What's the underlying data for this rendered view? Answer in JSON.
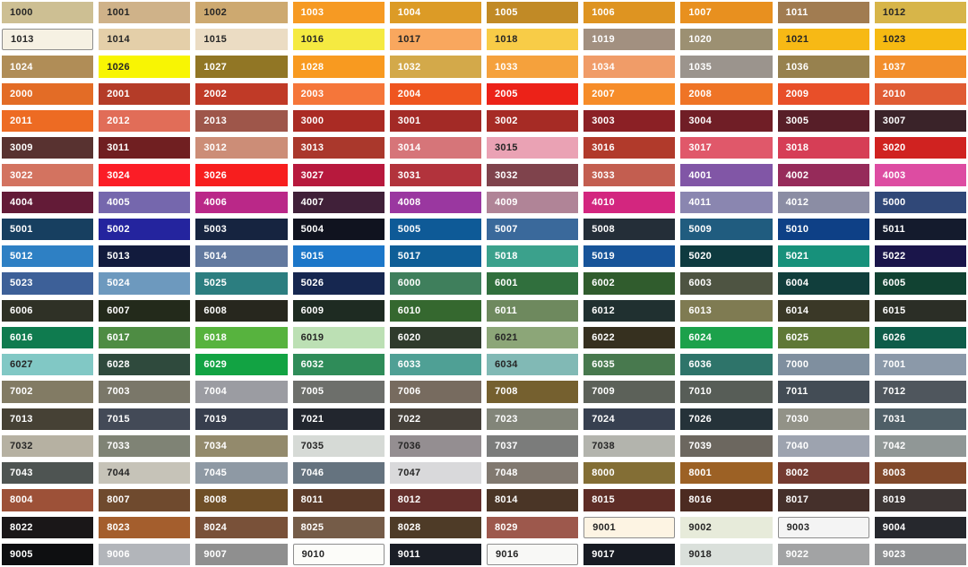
{
  "page": {
    "background": "#ffffff"
  },
  "text_colors": {
    "dark": "#262626",
    "light": "#FFFFFF"
  },
  "swatch_border_color": "#8e8e8e",
  "chart_data": {
    "type": "table",
    "title": "RAL colour swatch grid",
    "rows": 21,
    "columns": 10,
    "legend_position": "none",
    "grid": false,
    "swatches": [
      {
        "code": "1000",
        "hex": "#CDBF93",
        "fg": "dark"
      },
      {
        "code": "1001",
        "hex": "#CFB289",
        "fg": "dark"
      },
      {
        "code": "1002",
        "hex": "#CDA970",
        "fg": "dark"
      },
      {
        "code": "1003",
        "hex": "#F69A23",
        "fg": "light"
      },
      {
        "code": "1004",
        "hex": "#DC9B26",
        "fg": "light"
      },
      {
        "code": "1005",
        "hex": "#C18A26",
        "fg": "light"
      },
      {
        "code": "1006",
        "hex": "#DE9421",
        "fg": "light"
      },
      {
        "code": "1007",
        "hex": "#E8901F",
        "fg": "light"
      },
      {
        "code": "1011",
        "hex": "#A17C51",
        "fg": "light"
      },
      {
        "code": "1012",
        "hex": "#D7B549",
        "fg": "dark"
      },
      {
        "code": "1013",
        "hex": "#F6F1E3",
        "fg": "dark",
        "border": true
      },
      {
        "code": "1014",
        "hex": "#E4CFA9",
        "fg": "dark"
      },
      {
        "code": "1015",
        "hex": "#EBDCC3",
        "fg": "dark"
      },
      {
        "code": "1016",
        "hex": "#F5EA41",
        "fg": "dark"
      },
      {
        "code": "1017",
        "hex": "#F9A75E",
        "fg": "dark"
      },
      {
        "code": "1018",
        "hex": "#F8CC47",
        "fg": "dark"
      },
      {
        "code": "1019",
        "hex": "#A29080",
        "fg": "light"
      },
      {
        "code": "1020",
        "hex": "#9C9072",
        "fg": "light"
      },
      {
        "code": "1021",
        "hex": "#F7B915",
        "fg": "dark"
      },
      {
        "code": "1023",
        "hex": "#F6BA12",
        "fg": "dark"
      },
      {
        "code": "1024",
        "hex": "#B08D57",
        "fg": "light"
      },
      {
        "code": "1026",
        "hex": "#F8F503",
        "fg": "dark"
      },
      {
        "code": "1027",
        "hex": "#917625",
        "fg": "light"
      },
      {
        "code": "1028",
        "hex": "#F89A20",
        "fg": "light"
      },
      {
        "code": "1032",
        "hex": "#D3A94A",
        "fg": "light"
      },
      {
        "code": "1033",
        "hex": "#F5A13C",
        "fg": "light"
      },
      {
        "code": "1034",
        "hex": "#F09C68",
        "fg": "light"
      },
      {
        "code": "1035",
        "hex": "#9B948D",
        "fg": "light"
      },
      {
        "code": "1036",
        "hex": "#97814E",
        "fg": "light"
      },
      {
        "code": "1037",
        "hex": "#F28E2B",
        "fg": "light"
      },
      {
        "code": "2000",
        "hex": "#E36C26",
        "fg": "light"
      },
      {
        "code": "2001",
        "hex": "#B43C28",
        "fg": "light"
      },
      {
        "code": "2002",
        "hex": "#C03A27",
        "fg": "light"
      },
      {
        "code": "2003",
        "hex": "#F5763A",
        "fg": "light"
      },
      {
        "code": "2004",
        "hex": "#EF551F",
        "fg": "light"
      },
      {
        "code": "2005",
        "hex": "#EC2218",
        "fg": "light"
      },
      {
        "code": "2007",
        "hex": "#F68C29",
        "fg": "light"
      },
      {
        "code": "2008",
        "hex": "#EF7426",
        "fg": "light"
      },
      {
        "code": "2009",
        "hex": "#E84F29",
        "fg": "light"
      },
      {
        "code": "2010",
        "hex": "#E05C34",
        "fg": "light"
      },
      {
        "code": "2011",
        "hex": "#ED6B23",
        "fg": "light"
      },
      {
        "code": "2012",
        "hex": "#E16D58",
        "fg": "light"
      },
      {
        "code": "2013",
        "hex": "#9E564A",
        "fg": "light"
      },
      {
        "code": "3000",
        "hex": "#AA2B24",
        "fg": "light"
      },
      {
        "code": "3001",
        "hex": "#A32A26",
        "fg": "light"
      },
      {
        "code": "3002",
        "hex": "#A62B25",
        "fg": "light"
      },
      {
        "code": "3003",
        "hex": "#8B2025",
        "fg": "light"
      },
      {
        "code": "3004",
        "hex": "#701E26",
        "fg": "light"
      },
      {
        "code": "3005",
        "hex": "#571E28",
        "fg": "light"
      },
      {
        "code": "3007",
        "hex": "#3A2329",
        "fg": "light"
      },
      {
        "code": "3009",
        "hex": "#583230",
        "fg": "light"
      },
      {
        "code": "3011",
        "hex": "#701F21",
        "fg": "light"
      },
      {
        "code": "3012",
        "hex": "#CC8D77",
        "fg": "light"
      },
      {
        "code": "3013",
        "hex": "#AA382C",
        "fg": "light"
      },
      {
        "code": "3014",
        "hex": "#D67579",
        "fg": "light"
      },
      {
        "code": "3015",
        "hex": "#EAA2B4",
        "fg": "dark"
      },
      {
        "code": "3016",
        "hex": "#B13A2B",
        "fg": "light"
      },
      {
        "code": "3017",
        "hex": "#E0586A",
        "fg": "light"
      },
      {
        "code": "3018",
        "hex": "#D63E56",
        "fg": "light"
      },
      {
        "code": "3020",
        "hex": "#D02220",
        "fg": "light"
      },
      {
        "code": "3022",
        "hex": "#D37360",
        "fg": "light"
      },
      {
        "code": "3024",
        "hex": "#FB1D26",
        "fg": "light"
      },
      {
        "code": "3026",
        "hex": "#F71E1E",
        "fg": "light"
      },
      {
        "code": "3027",
        "hex": "#B7193D",
        "fg": "light"
      },
      {
        "code": "3031",
        "hex": "#B2333C",
        "fg": "light"
      },
      {
        "code": "3032",
        "hex": "#7F434C",
        "fg": "light"
      },
      {
        "code": "3033",
        "hex": "#C35E50",
        "fg": "light"
      },
      {
        "code": "4001",
        "hex": "#8156A6",
        "fg": "light"
      },
      {
        "code": "4002",
        "hex": "#962B5A",
        "fg": "light"
      },
      {
        "code": "4003",
        "hex": "#DD4CA2",
        "fg": "light"
      },
      {
        "code": "4004",
        "hex": "#631B37",
        "fg": "light"
      },
      {
        "code": "4005",
        "hex": "#7567AD",
        "fg": "light"
      },
      {
        "code": "4006",
        "hex": "#BA2888",
        "fg": "light"
      },
      {
        "code": "4007",
        "hex": "#402039",
        "fg": "light"
      },
      {
        "code": "4008",
        "hex": "#9A37A0",
        "fg": "light"
      },
      {
        "code": "4009",
        "hex": "#B08497",
        "fg": "light"
      },
      {
        "code": "4010",
        "hex": "#D3267F",
        "fg": "light"
      },
      {
        "code": "4011",
        "hex": "#8A86B0",
        "fg": "light"
      },
      {
        "code": "4012",
        "hex": "#8B8DA4",
        "fg": "light"
      },
      {
        "code": "5000",
        "hex": "#304878",
        "fg": "light"
      },
      {
        "code": "5001",
        "hex": "#173F60",
        "fg": "light"
      },
      {
        "code": "5002",
        "hex": "#24249E",
        "fg": "light"
      },
      {
        "code": "5003",
        "hex": "#162440",
        "fg": "light"
      },
      {
        "code": "5004",
        "hex": "#10131F",
        "fg": "light"
      },
      {
        "code": "5005",
        "hex": "#0E5A97",
        "fg": "light"
      },
      {
        "code": "5007",
        "hex": "#3A699B",
        "fg": "light"
      },
      {
        "code": "5008",
        "hex": "#242E38",
        "fg": "light"
      },
      {
        "code": "5009",
        "hex": "#205C7F",
        "fg": "light"
      },
      {
        "code": "5010",
        "hex": "#0E4086",
        "fg": "light"
      },
      {
        "code": "5011",
        "hex": "#141B2D",
        "fg": "light"
      },
      {
        "code": "5012",
        "hex": "#2E80C4",
        "fg": "light"
      },
      {
        "code": "5013",
        "hex": "#121B3D",
        "fg": "light"
      },
      {
        "code": "5014",
        "hex": "#62799F",
        "fg": "light"
      },
      {
        "code": "5015",
        "hex": "#1C77C9",
        "fg": "light"
      },
      {
        "code": "5017",
        "hex": "#0F5E97",
        "fg": "light"
      },
      {
        "code": "5018",
        "hex": "#3BA18C",
        "fg": "light"
      },
      {
        "code": "5019",
        "hex": "#175499",
        "fg": "light"
      },
      {
        "code": "5020",
        "hex": "#0E3A3F",
        "fg": "light"
      },
      {
        "code": "5021",
        "hex": "#17917B",
        "fg": "light"
      },
      {
        "code": "5022",
        "hex": "#1A154A",
        "fg": "light"
      },
      {
        "code": "5023",
        "hex": "#3D6098",
        "fg": "light"
      },
      {
        "code": "5024",
        "hex": "#6D99BE",
        "fg": "light"
      },
      {
        "code": "5025",
        "hex": "#2C7E80",
        "fg": "light"
      },
      {
        "code": "5026",
        "hex": "#162750",
        "fg": "light"
      },
      {
        "code": "6000",
        "hex": "#3F7F5C",
        "fg": "light"
      },
      {
        "code": "6001",
        "hex": "#306F3D",
        "fg": "light"
      },
      {
        "code": "6002",
        "hex": "#305C2D",
        "fg": "light"
      },
      {
        "code": "6003",
        "hex": "#4E5442",
        "fg": "light"
      },
      {
        "code": "6004",
        "hex": "#113E3C",
        "fg": "light"
      },
      {
        "code": "6005",
        "hex": "#114232",
        "fg": "light"
      },
      {
        "code": "6006",
        "hex": "#2F3126",
        "fg": "light"
      },
      {
        "code": "6007",
        "hex": "#232A1B",
        "fg": "light"
      },
      {
        "code": "6008",
        "hex": "#27271E",
        "fg": "light"
      },
      {
        "code": "6009",
        "hex": "#1E2B22",
        "fg": "light"
      },
      {
        "code": "6010",
        "hex": "#35682F",
        "fg": "light"
      },
      {
        "code": "6011",
        "hex": "#6E895E",
        "fg": "light"
      },
      {
        "code": "6012",
        "hex": "#203030",
        "fg": "light"
      },
      {
        "code": "6013",
        "hex": "#7F7B52",
        "fg": "light"
      },
      {
        "code": "6014",
        "hex": "#3A3827",
        "fg": "light"
      },
      {
        "code": "6015",
        "hex": "#2B2E26",
        "fg": "light"
      },
      {
        "code": "6016",
        "hex": "#0F7B4F",
        "fg": "light"
      },
      {
        "code": "6017",
        "hex": "#4E8C43",
        "fg": "light"
      },
      {
        "code": "6018",
        "hex": "#57B33E",
        "fg": "light"
      },
      {
        "code": "6019",
        "hex": "#BCE0B4",
        "fg": "dark"
      },
      {
        "code": "6020",
        "hex": "#2F3B2C",
        "fg": "light"
      },
      {
        "code": "6021",
        "hex": "#8CA678",
        "fg": "dark"
      },
      {
        "code": "6022",
        "hex": "#36301F",
        "fg": "light"
      },
      {
        "code": "6024",
        "hex": "#1CA14B",
        "fg": "light"
      },
      {
        "code": "6025",
        "hex": "#5F7836",
        "fg": "light"
      },
      {
        "code": "6026",
        "hex": "#0E5C49",
        "fg": "light"
      },
      {
        "code": "6027",
        "hex": "#81C8C5",
        "fg": "dark"
      },
      {
        "code": "6028",
        "hex": "#2F4A3D",
        "fg": "light"
      },
      {
        "code": "6029",
        "hex": "#12A343",
        "fg": "light"
      },
      {
        "code": "6032",
        "hex": "#2F8C59",
        "fg": "light"
      },
      {
        "code": "6033",
        "hex": "#4FA095",
        "fg": "light"
      },
      {
        "code": "6034",
        "hex": "#81B9B5",
        "fg": "dark"
      },
      {
        "code": "6035",
        "hex": "#48794E",
        "fg": "light"
      },
      {
        "code": "6036",
        "hex": "#2E746A",
        "fg": "light"
      },
      {
        "code": "7000",
        "hex": "#7F8F9F",
        "fg": "light"
      },
      {
        "code": "7001",
        "hex": "#8B99A9",
        "fg": "light"
      },
      {
        "code": "7002",
        "hex": "#827B64",
        "fg": "light"
      },
      {
        "code": "7003",
        "hex": "#7A7769",
        "fg": "light"
      },
      {
        "code": "7004",
        "hex": "#9B9CA2",
        "fg": "light"
      },
      {
        "code": "7005",
        "hex": "#6D6F6B",
        "fg": "light"
      },
      {
        "code": "7006",
        "hex": "#776B5F",
        "fg": "light"
      },
      {
        "code": "7008",
        "hex": "#75602F",
        "fg": "light"
      },
      {
        "code": "7009",
        "hex": "#5C6159",
        "fg": "light"
      },
      {
        "code": "7010",
        "hex": "#575D57",
        "fg": "light"
      },
      {
        "code": "7011",
        "hex": "#434C55",
        "fg": "light"
      },
      {
        "code": "7012",
        "hex": "#4F565D",
        "fg": "light"
      },
      {
        "code": "7013",
        "hex": "#464135",
        "fg": "light"
      },
      {
        "code": "7015",
        "hex": "#434A57",
        "fg": "light"
      },
      {
        "code": "7019",
        "hex": "#373E4D",
        "fg": "light"
      },
      {
        "code": "7021",
        "hex": "#22262E",
        "fg": "light"
      },
      {
        "code": "7022",
        "hex": "#454039",
        "fg": "light"
      },
      {
        "code": "7023",
        "hex": "#828579",
        "fg": "light"
      },
      {
        "code": "7024",
        "hex": "#374050",
        "fg": "light"
      },
      {
        "code": "7026",
        "hex": "#253239",
        "fg": "light"
      },
      {
        "code": "7030",
        "hex": "#929287",
        "fg": "light"
      },
      {
        "code": "7031",
        "hex": "#4F5F67",
        "fg": "light"
      },
      {
        "code": "7032",
        "hex": "#B6B1A2",
        "fg": "dark"
      },
      {
        "code": "7033",
        "hex": "#7F8375",
        "fg": "light"
      },
      {
        "code": "7034",
        "hex": "#938A6C",
        "fg": "light"
      },
      {
        "code": "7035",
        "hex": "#D6DAD6",
        "fg": "dark"
      },
      {
        "code": "7036",
        "hex": "#948E91",
        "fg": "dark"
      },
      {
        "code": "7037",
        "hex": "#7B7C7B",
        "fg": "light"
      },
      {
        "code": "7038",
        "hex": "#B3B4AD",
        "fg": "dark"
      },
      {
        "code": "7039",
        "hex": "#6C675F",
        "fg": "light"
      },
      {
        "code": "7040",
        "hex": "#9DA3AF",
        "fg": "light"
      },
      {
        "code": "7042",
        "hex": "#909796",
        "fg": "light"
      },
      {
        "code": "7043",
        "hex": "#4E5452",
        "fg": "light"
      },
      {
        "code": "7044",
        "hex": "#C6C3B8",
        "fg": "dark"
      },
      {
        "code": "7045",
        "hex": "#8E99A4",
        "fg": "light"
      },
      {
        "code": "7046",
        "hex": "#65737F",
        "fg": "light"
      },
      {
        "code": "7047",
        "hex": "#D9D9DB",
        "fg": "dark"
      },
      {
        "code": "7048",
        "hex": "#817970",
        "fg": "light"
      },
      {
        "code": "8000",
        "hex": "#836E35",
        "fg": "light"
      },
      {
        "code": "8001",
        "hex": "#9C6125",
        "fg": "light"
      },
      {
        "code": "8002",
        "hex": "#743B31",
        "fg": "light"
      },
      {
        "code": "8003",
        "hex": "#81492B",
        "fg": "light"
      },
      {
        "code": "8004",
        "hex": "#9D5138",
        "fg": "light"
      },
      {
        "code": "8007",
        "hex": "#6F4A2E",
        "fg": "light"
      },
      {
        "code": "8008",
        "hex": "#6F4F27",
        "fg": "light"
      },
      {
        "code": "8011",
        "hex": "#5A3A29",
        "fg": "light"
      },
      {
        "code": "8012",
        "hex": "#652F2C",
        "fg": "light"
      },
      {
        "code": "8014",
        "hex": "#4A3526",
        "fg": "light"
      },
      {
        "code": "8015",
        "hex": "#5E2D26",
        "fg": "light"
      },
      {
        "code": "8016",
        "hex": "#4C2B21",
        "fg": "light"
      },
      {
        "code": "8017",
        "hex": "#45302B",
        "fg": "light"
      },
      {
        "code": "8019",
        "hex": "#3D3635",
        "fg": "light"
      },
      {
        "code": "8022",
        "hex": "#1A1718",
        "fg": "light"
      },
      {
        "code": "8023",
        "hex": "#A45E2D",
        "fg": "light"
      },
      {
        "code": "8024",
        "hex": "#795139",
        "fg": "light"
      },
      {
        "code": "8025",
        "hex": "#755C48",
        "fg": "light"
      },
      {
        "code": "8028",
        "hex": "#4E3B27",
        "fg": "light"
      },
      {
        "code": "8029",
        "hex": "#9D584C",
        "fg": "light"
      },
      {
        "code": "9001",
        "hex": "#FDF4E3",
        "fg": "dark",
        "border": true
      },
      {
        "code": "9002",
        "hex": "#E7EBDA",
        "fg": "dark"
      },
      {
        "code": "9003",
        "hex": "#F4F4F4",
        "fg": "dark",
        "border": true
      },
      {
        "code": "9004",
        "hex": "#26282D",
        "fg": "light"
      },
      {
        "code": "9005",
        "hex": "#0E0F11",
        "fg": "light"
      },
      {
        "code": "9006",
        "hex": "#B2B5BA",
        "fg": "light"
      },
      {
        "code": "9007",
        "hex": "#8F8F8F",
        "fg": "light"
      },
      {
        "code": "9010",
        "hex": "#FCFCF9",
        "fg": "dark",
        "border": true
      },
      {
        "code": "9011",
        "hex": "#1A1E26",
        "fg": "light"
      },
      {
        "code": "9016",
        "hex": "#F8F8F6",
        "fg": "dark",
        "border": true
      },
      {
        "code": "9017",
        "hex": "#171B23",
        "fg": "light"
      },
      {
        "code": "9018",
        "hex": "#DAE0DB",
        "fg": "dark"
      },
      {
        "code": "9022",
        "hex": "#A2A3A4",
        "fg": "light"
      },
      {
        "code": "9023",
        "hex": "#8C8E90",
        "fg": "light"
      }
    ]
  }
}
